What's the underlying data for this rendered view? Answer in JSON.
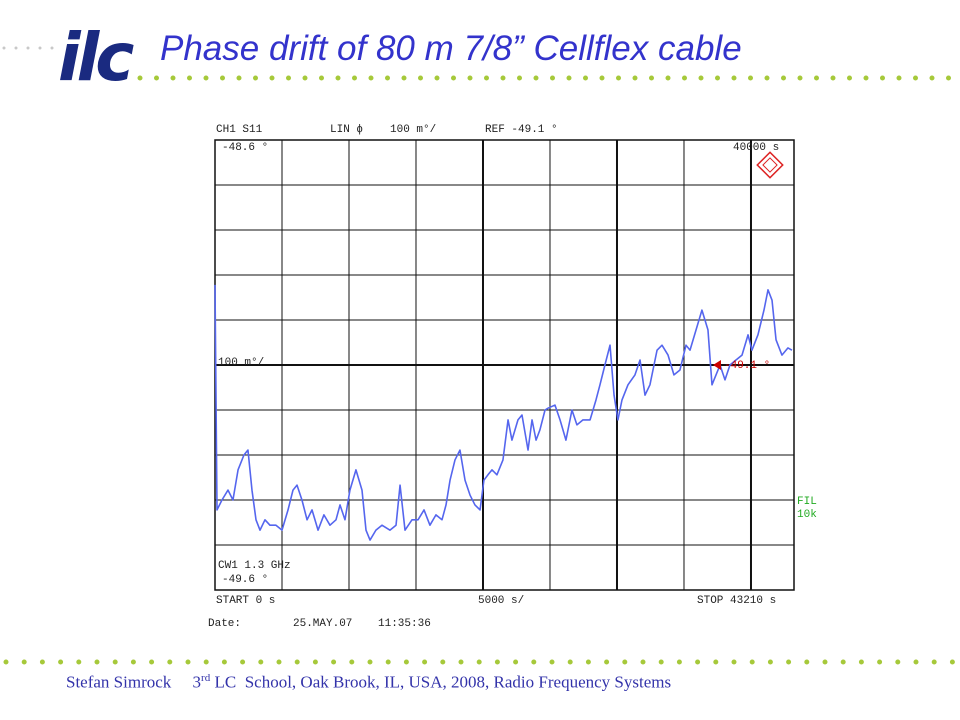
{
  "header": {
    "logo": "ilc",
    "title": "Phase drift of 80 m 7/8” Cellflex cable"
  },
  "footer": {
    "author": "Stefan Simrock",
    "ordinal": "3",
    "ordinal_suffix": "rd",
    "event": " LC  School, Oak Brook, IL, USA, 2008,",
    "topic": "Radio Frequency Systems"
  },
  "chart_data": {
    "type": "line",
    "color": "#5566ee",
    "annotations": {
      "channel": "CH1 S11",
      "format": "LIN ϕ",
      "scale": "100 m°/",
      "ref": "REF -49.1 °",
      "top_value": "-48.6 °",
      "marker_time": "40000 s",
      "scale_left": "100 m°/",
      "ref_marker": "-49.1 °",
      "filter_1": "FIL",
      "filter_2": "10k",
      "cw": "CW1 1.3 GHz",
      "bottom_value": "-49.6 °",
      "start": "START  0 s",
      "per_div": "5000 s/",
      "stop": "STOP 43210 s",
      "date_label": "Date:",
      "date": "25.MAY.07",
      "time": "11:35:36"
    },
    "x": [
      0,
      150,
      520,
      970,
      1340,
      1720,
      2160,
      2460,
      2760,
      3060,
      3360,
      3730,
      4100,
      4550,
      5000,
      5450,
      5820,
      6120,
      6490,
      6870,
      7240,
      7690,
      8130,
      8580,
      9030,
      9330,
      9700,
      10070,
      10520,
      10970,
      11270,
      11570,
      12010,
      12460,
      13060,
      13510,
      13810,
      14180,
      14700,
      15150,
      15600,
      16040,
      16490,
      16940,
      17240,
      17540,
      17910,
      18280,
      18660,
      19030,
      19400,
      19780,
      20070,
      20370,
      20670,
      21040,
      21490,
      21870,
      22160,
      22610,
      22910,
      23360,
      23660,
      23960,
      24250,
      24630,
      24850,
      25370,
      25750,
      26190,
      26640,
      27010,
      27460,
      27990,
      28430,
      28730,
      29100,
      29480,
      29780,
      30070,
      30370,
      30820,
      31340,
      31720,
      32090,
      32460,
      32990,
      33360,
      33810,
      34250,
      34700,
      35150,
      35450,
      35900,
      36340,
      36790,
      37090,
      37390,
      37690,
      38060,
      38430,
      38880,
      39330,
      39780,
      40070,
      40520,
      40970,
      41270,
      41570,
      41870,
      42310,
      42760,
      43060
    ],
    "values": [
      -48.922,
      -49.422,
      -49.4,
      -49.378,
      -49.4,
      -49.333,
      -49.3,
      -49.289,
      -49.378,
      -49.444,
      -49.467,
      -49.444,
      -49.456,
      -49.456,
      -49.467,
      -49.422,
      -49.378,
      -49.367,
      -49.4,
      -49.444,
      -49.422,
      -49.467,
      -49.433,
      -49.456,
      -49.444,
      -49.411,
      -49.444,
      -49.378,
      -49.333,
      -49.378,
      -49.467,
      -49.489,
      -49.467,
      -49.456,
      -49.467,
      -49.456,
      -49.367,
      -49.467,
      -49.444,
      -49.444,
      -49.422,
      -49.456,
      -49.433,
      -49.444,
      -49.411,
      -49.356,
      -49.311,
      -49.289,
      -49.356,
      -49.389,
      -49.411,
      -49.422,
      -49.356,
      -49.344,
      -49.333,
      -49.344,
      -49.311,
      -49.222,
      -49.267,
      -49.222,
      -49.211,
      -49.289,
      -49.222,
      -49.267,
      -49.244,
      -49.2,
      -49.196,
      -49.189,
      -49.222,
      -49.267,
      -49.2,
      -49.233,
      -49.222,
      -49.222,
      -49.178,
      -49.144,
      -49.1,
      -49.056,
      -49.167,
      -49.222,
      -49.178,
      -49.144,
      -49.122,
      -49.089,
      -49.167,
      -49.144,
      -49.067,
      -49.056,
      -49.078,
      -49.122,
      -49.111,
      -49.056,
      -49.067,
      -49.022,
      -48.978,
      -49.022,
      -49.144,
      -49.122,
      -49.1,
      -49.133,
      -49.1,
      -49.089,
      -49.078,
      -49.033,
      -49.067,
      -49.033,
      -48.978,
      -48.933,
      -48.956,
      -49.044,
      -49.078,
      -49.062,
      -49.067
    ],
    "xlim": [
      0,
      43210
    ],
    "xticks": [
      0,
      5000,
      10000,
      15000,
      20000,
      25000,
      30000,
      35000,
      40000
    ],
    "ylim": [
      -49.6,
      -48.6
    ],
    "yticks": [
      -49.6,
      -49.5,
      -49.4,
      -49.3,
      -49.2,
      -49.1,
      -49,
      -48.9,
      -48.8,
      -48.7,
      -48.6
    ],
    "grid": true
  }
}
